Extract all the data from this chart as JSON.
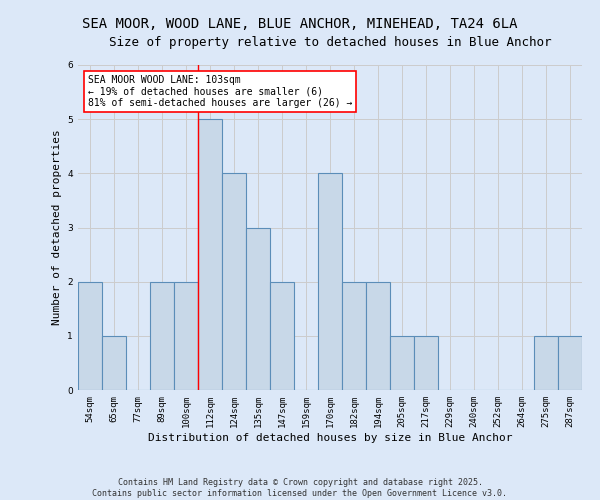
{
  "title": "SEA MOOR, WOOD LANE, BLUE ANCHOR, MINEHEAD, TA24 6LA",
  "subtitle": "Size of property relative to detached houses in Blue Anchor",
  "xlabel": "Distribution of detached houses by size in Blue Anchor",
  "ylabel": "Number of detached properties",
  "categories": [
    "54sqm",
    "65sqm",
    "77sqm",
    "89sqm",
    "100sqm",
    "112sqm",
    "124sqm",
    "135sqm",
    "147sqm",
    "159sqm",
    "170sqm",
    "182sqm",
    "194sqm",
    "205sqm",
    "217sqm",
    "229sqm",
    "240sqm",
    "252sqm",
    "264sqm",
    "275sqm",
    "287sqm"
  ],
  "values": [
    2,
    1,
    0,
    2,
    2,
    5,
    4,
    3,
    2,
    0,
    4,
    2,
    2,
    1,
    1,
    0,
    0,
    0,
    0,
    1,
    1
  ],
  "bar_color": "#c8d8e8",
  "bar_edge_color": "#5b8db8",
  "bar_edge_width": 0.8,
  "grid_color": "#cccccc",
  "background_color": "#dce8f8",
  "annotation_text": "SEA MOOR WOOD LANE: 103sqm\n← 19% of detached houses are smaller (6)\n81% of semi-detached houses are larger (26) →",
  "annotation_box_color": "white",
  "annotation_box_edge_color": "red",
  "red_line_x": 4.5,
  "ylim": [
    0,
    6
  ],
  "yticks": [
    0,
    1,
    2,
    3,
    4,
    5,
    6
  ],
  "footer_line1": "Contains HM Land Registry data © Crown copyright and database right 2025.",
  "footer_line2": "Contains public sector information licensed under the Open Government Licence v3.0.",
  "title_fontsize": 10,
  "subtitle_fontsize": 9,
  "axis_label_fontsize": 8,
  "tick_fontsize": 6.5,
  "annotation_fontsize": 7,
  "footer_fontsize": 6
}
